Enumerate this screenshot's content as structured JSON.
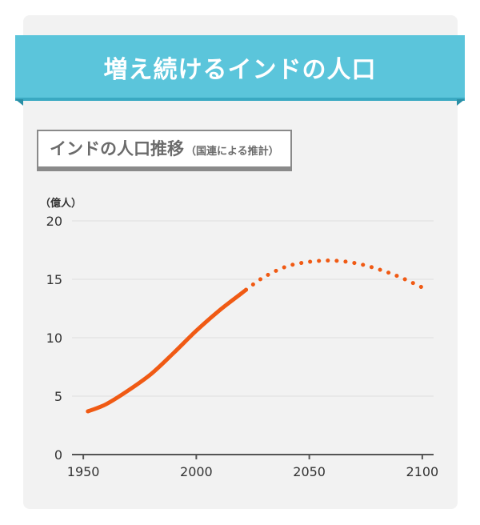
{
  "title": "増え続けるインドの人口",
  "chart_data": {
    "type": "line",
    "title": "インドの人口推移",
    "subtitle": "（国連による推計）",
    "ylabel": "（億人）",
    "xlabel": "",
    "xlim": [
      1945,
      2105
    ],
    "ylim": [
      0,
      20
    ],
    "x_ticks": [
      1950,
      2000,
      2050,
      2100
    ],
    "y_ticks": [
      0,
      5,
      10,
      15,
      20
    ],
    "grid": true,
    "line_color": "#f05a14",
    "series": [
      {
        "style": "solid",
        "x": [
          1952,
          1960,
          1970,
          1980,
          1990,
          2000,
          2010,
          2020,
          2022
        ],
        "y": [
          3.7,
          4.3,
          5.5,
          6.9,
          8.7,
          10.6,
          12.3,
          13.8,
          14.1
        ]
      },
      {
        "style": "dotted",
        "x": [
          2022,
          2030,
          2040,
          2050,
          2060,
          2070,
          2080,
          2090,
          2100
        ],
        "y": [
          14.1,
          15.2,
          16.1,
          16.5,
          16.6,
          16.4,
          15.9,
          15.2,
          14.3
        ]
      }
    ]
  }
}
